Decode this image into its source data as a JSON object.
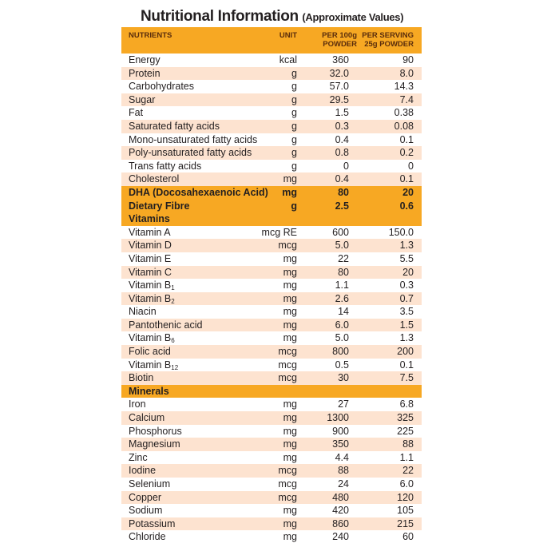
{
  "title": "Nutritional Information",
  "subtitle": "(Approximate Values)",
  "header": {
    "nutrients": "NUTRIENTS",
    "unit": "UNIT",
    "per100": "PER 100g POWDER",
    "serving": "PER SERVING 25g POWDER"
  },
  "colors": {
    "accent": "#f7a823",
    "stripe": "#fde3d0"
  },
  "rows": [
    {
      "name": "Energy",
      "unit": "kcal",
      "p100": "360",
      "serv": "90"
    },
    {
      "name": "Protein",
      "unit": "g",
      "p100": "32.0",
      "serv": "8.0"
    },
    {
      "name": "Carbohydrates",
      "unit": "g",
      "p100": "57.0",
      "serv": "14.3"
    },
    {
      "name": " Sugar",
      "unit": "g",
      "p100": "29.5",
      "serv": "7.4"
    },
    {
      "name": "Fat",
      "unit": "g",
      "p100": "1.5",
      "serv": "0.38"
    },
    {
      "name": "Saturated fatty acids",
      "unit": "g",
      "p100": "0.3",
      "serv": "0.08"
    },
    {
      "name": "Mono-unsaturated fatty acids",
      "unit": "g",
      "p100": "0.4",
      "serv": "0.1"
    },
    {
      "name": "Poly-unsaturated fatty acids",
      "unit": "g",
      "p100": "0.8",
      "serv": "0.2"
    },
    {
      "name": "Trans fatty acids",
      "unit": "g",
      "p100": "0",
      "serv": "0"
    },
    {
      "name": "Cholesterol",
      "unit": "mg",
      "p100": "0.4",
      "serv": "0.1"
    },
    {
      "name": "DHA (Docosahexaenoic Acid)",
      "unit": "mg",
      "p100": "80",
      "serv": "20",
      "type": "hl"
    },
    {
      "name": "Dietary Fibre",
      "unit": "g",
      "p100": "2.5",
      "serv": "0.6",
      "type": "hl"
    },
    {
      "name": "Vitamins",
      "type": "sec"
    },
    {
      "name": "Vitamin A",
      "unit": "mcg RE",
      "p100": "600",
      "serv": "150.0"
    },
    {
      "name": "Vitamin D",
      "unit": "mcg",
      "p100": "5.0",
      "serv": "1.3"
    },
    {
      "name": "Vitamin E",
      "unit": "mg",
      "p100": "22",
      "serv": "5.5"
    },
    {
      "name": "Vitamin C",
      "unit": "mg",
      "p100": "80",
      "serv": "20"
    },
    {
      "name": "Vitamin B",
      "sub": "1",
      "unit": "mg",
      "p100": "1.1",
      "serv": "0.3"
    },
    {
      "name": "Vitamin B",
      "sub": "2",
      "unit": "mg",
      "p100": "2.6",
      "serv": "0.7"
    },
    {
      "name": "Niacin",
      "unit": "mg",
      "p100": "14",
      "serv": "3.5"
    },
    {
      "name": "Pantothenic acid",
      "unit": "mg",
      "p100": "6.0",
      "serv": "1.5"
    },
    {
      "name": "Vitamin B",
      "sub": "6",
      "unit": "mg",
      "p100": "5.0",
      "serv": "1.3"
    },
    {
      "name": "Folic acid",
      "unit": "mcg",
      "p100": "800",
      "serv": "200"
    },
    {
      "name": "Vitamin B",
      "sub": "12",
      "unit": "mcg",
      "p100": "0.5",
      "serv": "0.1"
    },
    {
      "name": "Biotin",
      "unit": "mcg",
      "p100": "30",
      "serv": "7.5"
    },
    {
      "name": "Minerals",
      "type": "sec"
    },
    {
      "name": "Iron",
      "unit": "mg",
      "p100": "27",
      "serv": "6.8"
    },
    {
      "name": "Calcium",
      "unit": "mg",
      "p100": "1300",
      "serv": "325"
    },
    {
      "name": "Phosphorus",
      "unit": "mg",
      "p100": "900",
      "serv": "225"
    },
    {
      "name": "Magnesium",
      "unit": "mg",
      "p100": "350",
      "serv": "88"
    },
    {
      "name": "Zinc",
      "unit": "mg",
      "p100": "4.4",
      "serv": "1.1"
    },
    {
      "name": "Iodine",
      "unit": "mcg",
      "p100": "88",
      "serv": "22"
    },
    {
      "name": "Selenium",
      "unit": "mcg",
      "p100": "24",
      "serv": "6.0"
    },
    {
      "name": "Copper",
      "unit": "mcg",
      "p100": "480",
      "serv": "120"
    },
    {
      "name": "Sodium",
      "unit": "mg",
      "p100": "420",
      "serv": "105"
    },
    {
      "name": "Potassium",
      "unit": "mg",
      "p100": "860",
      "serv": "215"
    },
    {
      "name": "Chloride",
      "unit": "mg",
      "p100": "240",
      "serv": "60"
    }
  ]
}
